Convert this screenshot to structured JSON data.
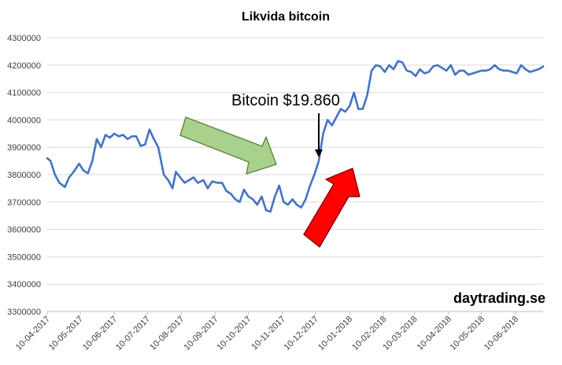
{
  "chart_data": {
    "type": "line",
    "title": "Likvida bitcoin",
    "ylim": [
      3300000,
      4300000
    ],
    "yticks": [
      3300000,
      3400000,
      3500000,
      3600000,
      3700000,
      3800000,
      3900000,
      4000000,
      4100000,
      4200000,
      4300000
    ],
    "ytick_labels": [
      "3300000",
      "3400000",
      "3500000",
      "3600000",
      "3700000",
      "3800000",
      "3900000",
      "4000000",
      "4100000",
      "4200000",
      "4300000"
    ],
    "xlim": [
      "2017-04-10",
      "2018-07-05"
    ],
    "xticks": [
      "2017-04-10",
      "2017-05-10",
      "2017-06-10",
      "2017-07-10",
      "2017-08-10",
      "2017-09-10",
      "2017-10-10",
      "2017-11-10",
      "2017-12-10",
      "2018-01-10",
      "2018-02-10",
      "2018-03-10",
      "2018-04-10",
      "2018-05-10",
      "2018-06-10"
    ],
    "xtick_labels": [
      "10-04-2017",
      "10-05-2017",
      "10-06-2017",
      "10-07-2017",
      "10-08-2017",
      "10-09-2017",
      "10-10-2017",
      "10-11-2017",
      "10-12-2017",
      "10-01-2018",
      "10-02-2018",
      "10-03-2018",
      "10-04-2018",
      "10-05-2018",
      "10-06-2018"
    ],
    "grid": true,
    "line_color": "#4472c4",
    "series": [
      {
        "x": [
          "2017-04-10",
          "2017-04-13",
          "2017-04-17",
          "2017-04-21",
          "2017-04-26",
          "2017-04-30",
          "2017-05-04",
          "2017-05-09",
          "2017-05-13",
          "2017-05-17",
          "2017-05-21",
          "2017-05-25",
          "2017-05-29",
          "2017-06-02",
          "2017-06-06",
          "2017-06-10",
          "2017-06-14",
          "2017-06-18",
          "2017-06-22",
          "2017-06-26",
          "2017-06-30",
          "2017-07-04",
          "2017-07-08",
          "2017-07-12",
          "2017-07-16",
          "2017-07-20",
          "2017-07-25",
          "2017-07-29",
          "2017-08-02",
          "2017-08-05",
          "2017-08-09",
          "2017-08-13",
          "2017-08-17",
          "2017-08-21",
          "2017-08-25",
          "2017-08-30",
          "2017-09-03",
          "2017-09-07",
          "2017-09-12",
          "2017-09-16",
          "2017-09-20",
          "2017-09-24",
          "2017-09-28",
          "2017-10-02",
          "2017-10-06",
          "2017-10-10",
          "2017-10-14",
          "2017-10-18",
          "2017-10-22",
          "2017-10-26",
          "2017-10-30",
          "2017-11-03",
          "2017-11-07",
          "2017-11-11",
          "2017-11-15",
          "2017-11-19",
          "2017-11-23",
          "2017-11-27",
          "2017-12-01",
          "2017-12-05",
          "2017-12-09",
          "2017-12-13",
          "2017-12-17",
          "2017-12-21",
          "2017-12-25",
          "2017-12-29",
          "2018-01-02",
          "2018-01-06",
          "2018-01-10",
          "2018-01-14",
          "2018-01-18",
          "2018-01-22",
          "2018-01-26",
          "2018-01-30",
          "2018-02-03",
          "2018-02-07",
          "2018-02-11",
          "2018-02-15",
          "2018-02-19",
          "2018-02-23",
          "2018-02-27",
          "2018-03-03",
          "2018-03-07",
          "2018-03-11",
          "2018-03-15",
          "2018-03-19",
          "2018-03-23",
          "2018-03-27",
          "2018-03-31",
          "2018-04-04",
          "2018-04-08",
          "2018-04-12",
          "2018-04-16",
          "2018-04-20",
          "2018-04-24",
          "2018-04-28",
          "2018-05-02",
          "2018-05-06",
          "2018-05-10",
          "2018-05-14",
          "2018-05-18",
          "2018-05-22",
          "2018-05-26",
          "2018-05-30",
          "2018-06-03",
          "2018-06-07",
          "2018-06-11",
          "2018-06-15",
          "2018-06-19",
          "2018-06-23",
          "2018-06-27",
          "2018-07-01",
          "2018-07-05"
        ],
        "y": [
          3860000,
          3850000,
          3800000,
          3770000,
          3755000,
          3790000,
          3810000,
          3840000,
          3815000,
          3805000,
          3850000,
          3930000,
          3900000,
          3945000,
          3935000,
          3950000,
          3940000,
          3945000,
          3930000,
          3940000,
          3940000,
          3905000,
          3910000,
          3965000,
          3930000,
          3900000,
          3800000,
          3780000,
          3750000,
          3810000,
          3790000,
          3770000,
          3780000,
          3790000,
          3770000,
          3780000,
          3750000,
          3775000,
          3770000,
          3770000,
          3740000,
          3730000,
          3710000,
          3700000,
          3745000,
          3720000,
          3710000,
          3690000,
          3720000,
          3670000,
          3665000,
          3720000,
          3760000,
          3700000,
          3690000,
          3710000,
          3690000,
          3680000,
          3710000,
          3760000,
          3800000,
          3850000,
          3950000,
          4000000,
          3980000,
          4010000,
          4040000,
          4030000,
          4050000,
          4100000,
          4040000,
          4040000,
          4090000,
          4180000,
          4200000,
          4195000,
          4175000,
          4200000,
          4185000,
          4215000,
          4210000,
          4180000,
          4175000,
          4160000,
          4185000,
          4170000,
          4175000,
          4195000,
          4200000,
          4190000,
          4180000,
          4200000,
          4165000,
          4180000,
          4180000,
          4165000,
          4170000,
          4175000,
          4180000,
          4180000,
          4185000,
          4200000,
          4185000,
          4180000,
          4180000,
          4175000,
          4170000,
          4200000,
          4185000,
          4175000,
          4180000,
          4185000,
          4195000
        ]
      }
    ],
    "annotations": [
      {
        "text": "Bitcoin $19.860",
        "date": "2017-12-17",
        "value": 3850000
      }
    ]
  },
  "watermark": "daytrading.se"
}
